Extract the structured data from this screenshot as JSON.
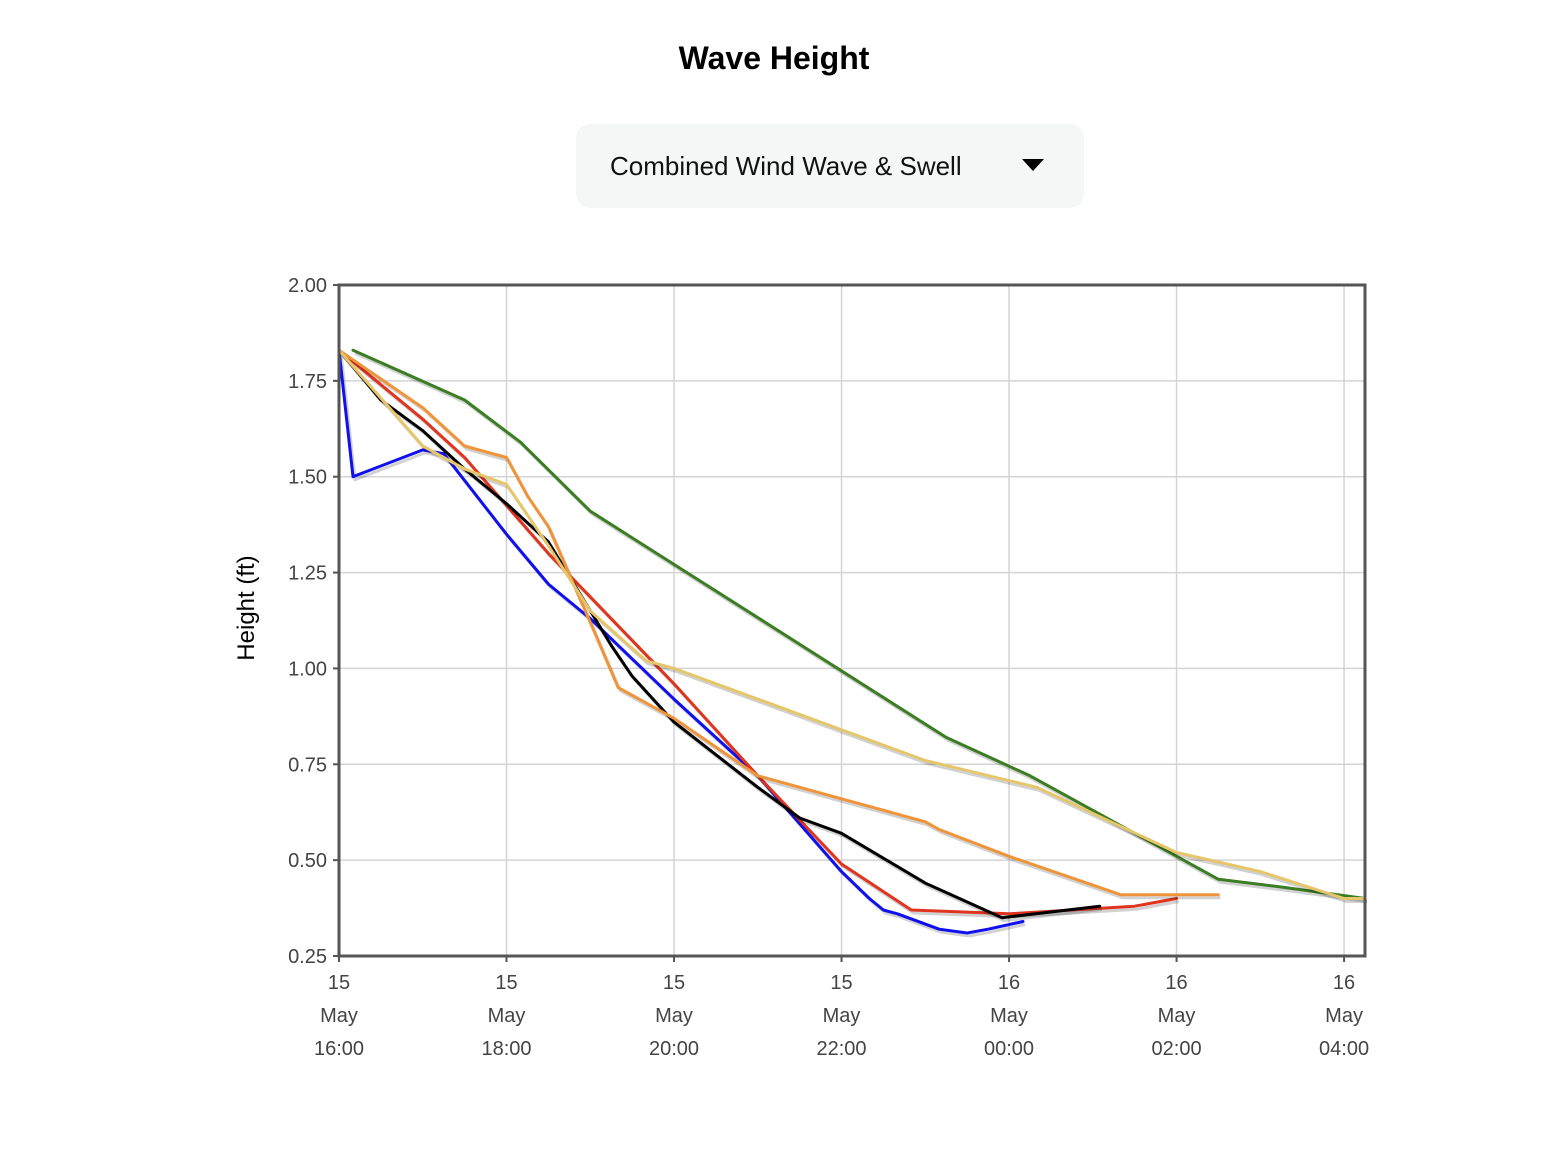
{
  "header": {
    "title": "Wave Height"
  },
  "selector": {
    "value": "Combined Wind Wave & Swell",
    "caret_icon": "caret-down-icon"
  },
  "chart_data": {
    "type": "line",
    "title": "",
    "xlabel": "",
    "ylabel": "Height (ft)",
    "ylim": [
      0.25,
      2.0
    ],
    "yticks": [
      "2.00",
      "1.75",
      "1.50",
      "1.25",
      "1.00",
      "0.75",
      "0.50",
      "0.25"
    ],
    "xlim": [
      "2024-05-15 16:00",
      "2024-05-16 04:15"
    ],
    "xticks": [
      {
        "day": "15",
        "month": "May",
        "time": "16:00"
      },
      {
        "day": "15",
        "month": "May",
        "time": "18:00"
      },
      {
        "day": "15",
        "month": "May",
        "time": "20:00"
      },
      {
        "day": "15",
        "month": "May",
        "time": "22:00"
      },
      {
        "day": "16",
        "month": "May",
        "time": "00:00"
      },
      {
        "day": "16",
        "month": "May",
        "time": "02:00"
      },
      {
        "day": "16",
        "month": "May",
        "time": "04:00"
      }
    ],
    "grid": true,
    "legend": "none",
    "series": [
      {
        "color": "#3a7d22",
        "x": [
          "2024-05-15 16:10",
          "2024-05-15 17:30",
          "2024-05-15 18:10",
          "2024-05-15 19:00",
          "2024-05-15 23:15",
          "2024-05-16 00:15",
          "2024-05-16 02:00",
          "2024-05-16 02:15",
          "2024-05-16 02:30",
          "2024-05-16 03:15",
          "2024-05-16 04:15"
        ],
        "y": [
          1.83,
          1.7,
          1.59,
          1.41,
          0.82,
          0.72,
          0.51,
          0.48,
          0.45,
          0.43,
          0.4
        ]
      },
      {
        "color": "#1010ee",
        "x": [
          "2024-05-15 16:00",
          "2024-05-15 16:10",
          "2024-05-15 17:00",
          "2024-05-15 17:15",
          "2024-05-15 18:00",
          "2024-05-15 18:30",
          "2024-05-15 19:00",
          "2024-05-15 20:00",
          "2024-05-15 21:00",
          "2024-05-15 22:00",
          "2024-05-15 22:20",
          "2024-05-15 22:30",
          "2024-05-15 22:40",
          "2024-05-15 23:10",
          "2024-05-15 23:30",
          "2024-05-15 23:45",
          "2024-05-16 00:10"
        ],
        "y": [
          1.83,
          1.5,
          1.57,
          1.56,
          1.35,
          1.22,
          1.13,
          0.92,
          0.72,
          0.47,
          0.4,
          0.37,
          0.36,
          0.32,
          0.31,
          0.32,
          0.34
        ]
      },
      {
        "color": "#e0341f",
        "x": [
          "2024-05-15 16:00",
          "2024-05-15 17:00",
          "2024-05-15 17:30",
          "2024-05-15 18:30",
          "2024-05-15 20:00",
          "2024-05-15 21:00",
          "2024-05-15 22:00",
          "2024-05-15 22:50",
          "2024-05-16 00:00",
          "2024-05-16 01:30",
          "2024-05-16 02:00"
        ],
        "y": [
          1.83,
          1.65,
          1.55,
          1.3,
          0.96,
          0.72,
          0.49,
          0.37,
          0.36,
          0.38,
          0.4
        ]
      },
      {
        "color": "#000000",
        "x": [
          "2024-05-15 16:00",
          "2024-05-15 16:30",
          "2024-05-15 17:00",
          "2024-05-15 17:30",
          "2024-05-15 18:00",
          "2024-05-15 18:15",
          "2024-05-15 18:30",
          "2024-05-15 18:45",
          "2024-05-15 19:00",
          "2024-05-15 19:15",
          "2024-05-15 19:30",
          "2024-05-15 20:00",
          "2024-05-15 21:00",
          "2024-05-15 21:30",
          "2024-05-15 22:00",
          "2024-05-15 23:00",
          "2024-05-15 23:55",
          "2024-05-16 01:05"
        ],
        "y": [
          1.83,
          1.7,
          1.62,
          1.52,
          1.43,
          1.38,
          1.33,
          1.24,
          1.15,
          1.06,
          0.98,
          0.86,
          0.69,
          0.61,
          0.57,
          0.44,
          0.35,
          0.38
        ]
      },
      {
        "color": "#f0943a",
        "x": [
          "2024-05-15 16:00",
          "2024-05-15 17:00",
          "2024-05-15 17:30",
          "2024-05-15 18:00",
          "2024-05-15 18:15",
          "2024-05-15 18:30",
          "2024-05-15 19:00",
          "2024-05-15 19:20",
          "2024-05-15 20:00",
          "2024-05-15 21:00",
          "2024-05-15 22:00",
          "2024-05-15 23:00",
          "2024-05-15 23:10",
          "2024-05-16 00:00",
          "2024-05-16 01:20",
          "2024-05-16 02:30"
        ],
        "y": [
          1.83,
          1.68,
          1.58,
          1.55,
          1.45,
          1.37,
          1.12,
          0.95,
          0.87,
          0.72,
          0.66,
          0.6,
          0.58,
          0.51,
          0.41,
          0.41
        ]
      },
      {
        "color": "#e5c66a",
        "x": [
          "2024-05-15 16:00",
          "2024-05-15 17:00",
          "2024-05-15 17:30",
          "2024-05-15 18:00",
          "2024-05-15 18:30",
          "2024-05-15 19:00",
          "2024-05-15 19:40",
          "2024-05-15 20:00",
          "2024-05-15 22:00",
          "2024-05-15 23:00",
          "2024-05-16 00:20",
          "2024-05-16 02:00",
          "2024-05-16 03:00",
          "2024-05-16 04:00",
          "2024-05-16 04:15"
        ],
        "y": [
          1.83,
          1.58,
          1.52,
          1.48,
          1.32,
          1.15,
          1.02,
          1.0,
          0.84,
          0.76,
          0.69,
          0.52,
          0.47,
          0.4,
          0.4
        ]
      }
    ]
  }
}
